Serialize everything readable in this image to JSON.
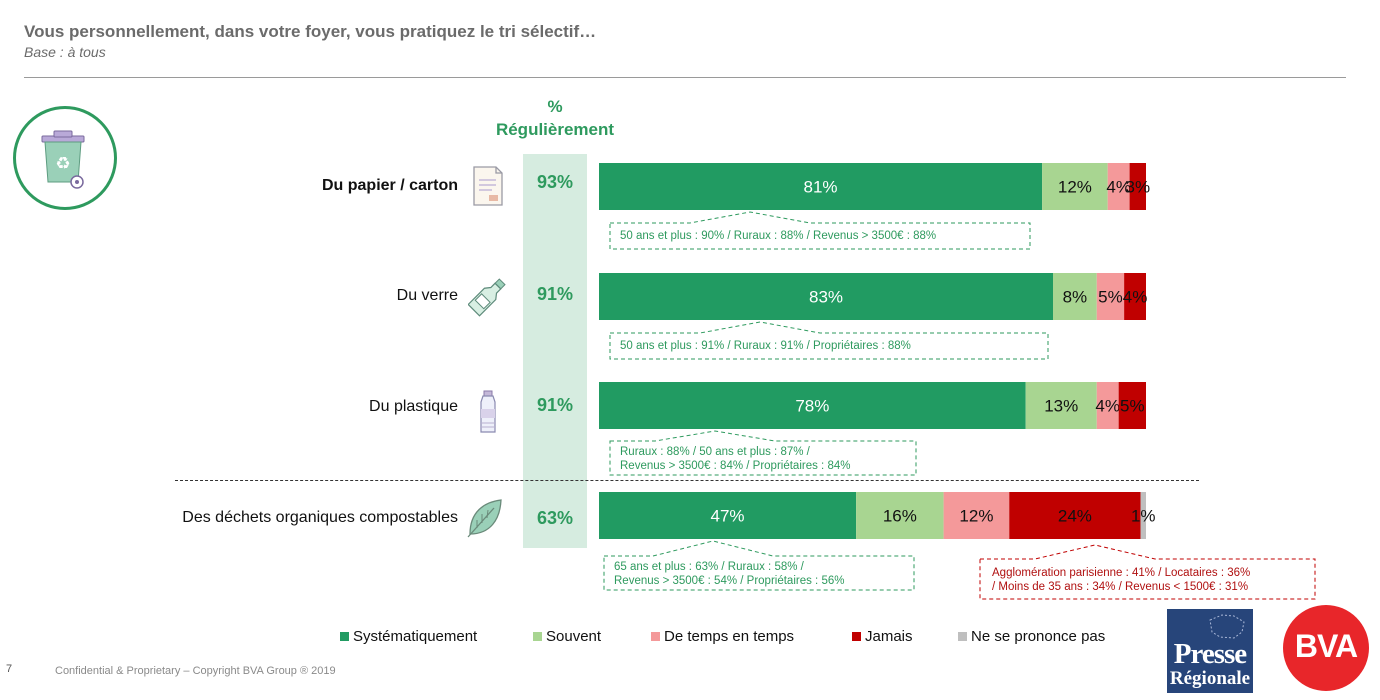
{
  "header": {
    "title": "Vous personnellement, dans votre foyer, vous pratiquez le tri sélectif…",
    "subtitle": "Base : à tous"
  },
  "column_header": {
    "line1": "%",
    "line2": "Régulièrement"
  },
  "colors": {
    "systematiquement": "#219b62",
    "souvent": "#a8d591",
    "de_temps_en_temps": "#f4999a",
    "jamais": "#c00000",
    "ne_se_prononce_pas": "#bfbfbf",
    "accent": "#2e9a5e"
  },
  "chart_data": {
    "type": "bar",
    "orientation": "horizontal",
    "stacked": true,
    "categories": [
      "Du papier / carton",
      "Du verre",
      "Du plastique",
      "Des déchets organiques compostables"
    ],
    "regulierement": [
      "93%",
      "91%",
      "91%",
      "63%"
    ],
    "series": [
      {
        "name": "Systématiquement",
        "values": [
          81,
          83,
          78,
          47
        ]
      },
      {
        "name": "Souvent",
        "values": [
          12,
          8,
          13,
          16
        ]
      },
      {
        "name": "De temps en temps",
        "values": [
          4,
          5,
          4,
          12
        ]
      },
      {
        "name": "Jamais",
        "values": [
          3,
          4,
          5,
          24
        ]
      },
      {
        "name": "Ne se prononce pas",
        "values": [
          0,
          0,
          0,
          1
        ]
      }
    ],
    "legend": [
      "Systématiquement",
      "Souvent",
      "De temps en temps",
      "Jamais",
      "Ne se prononce pas"
    ],
    "legend_position": "bottom"
  },
  "callouts": [
    {
      "lines": [
        "50 ans et plus : 90% / Ruraux : 88% / Revenus > 3500€ : 88%"
      ]
    },
    {
      "lines": [
        "50 ans et plus : 91% / Ruraux : 91% /  Propriétaires : 88%"
      ]
    },
    {
      "lines": [
        "Ruraux : 88% / 50 ans et plus : 87% /",
        "Revenus > 3500€ : 84% / Propriétaires : 84%"
      ]
    },
    {
      "lines": [
        "65 ans et plus : 63% / Ruraux : 58% /",
        "Revenus > 3500€ : 54% / Propriétaires : 56%"
      ]
    },
    {
      "lines": [
        "Agglomération parisienne : 41% / Locataires : 36%",
        "/ Moins de 35 ans : 34% / Revenus < 1500€ : 31%"
      ]
    }
  ],
  "footer": {
    "page_number": "7",
    "copyright": "Confidential & Proprietary – Copyright BVA Group ®  2019"
  },
  "logos": {
    "presse_line1": "Presse",
    "presse_line2": "Régionale",
    "bva": "BVA"
  },
  "icons": [
    "recycle-bin-icon",
    "paper-document-icon",
    "glass-bottle-icon",
    "plastic-bottle-icon",
    "leaf-icon"
  ]
}
